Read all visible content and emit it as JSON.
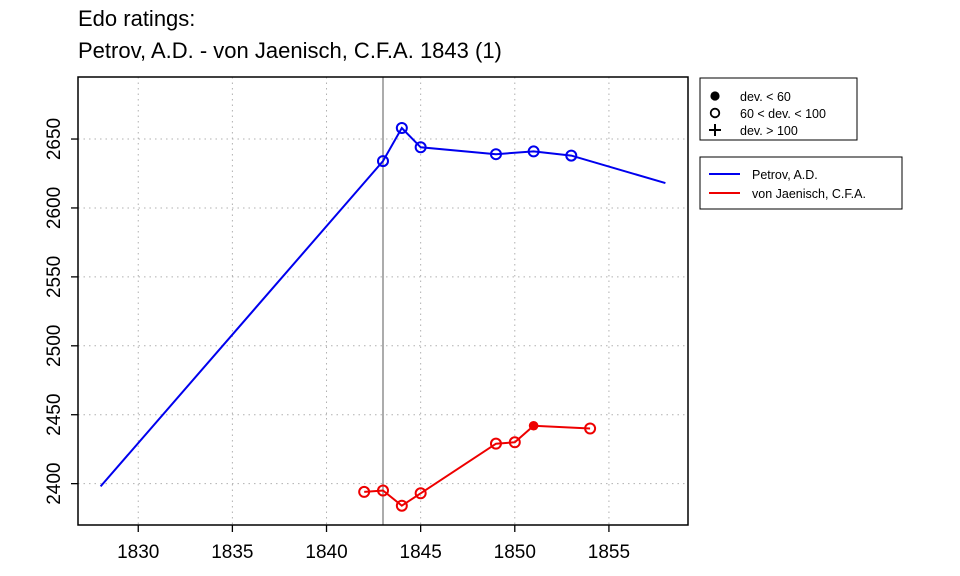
{
  "chart_data": {
    "type": "line",
    "title": "Edo ratings:",
    "subtitle": "Petrov, A.D. - von Jaenisch, C.F.A. 1843 (1)",
    "xlabel": "",
    "ylabel": "",
    "xlim": [
      1826.8,
      1859.2
    ],
    "ylim": [
      2370,
      2695
    ],
    "x_ticks": [
      1830,
      1835,
      1840,
      1845,
      1850,
      1855
    ],
    "y_ticks": [
      2400,
      2450,
      2500,
      2550,
      2600,
      2650
    ],
    "grid": true,
    "event_year": 1843,
    "series": [
      {
        "name": "Petrov, A.D.",
        "color": "#0000ee",
        "x": [
          1828,
          1843,
          1844,
          1845,
          1849,
          1851,
          1853,
          1858
        ],
        "y": [
          2398,
          2634,
          2658,
          2644,
          2639,
          2641,
          2638,
          2618
        ],
        "markers": [
          null,
          "open",
          "open",
          "open",
          "open",
          "open",
          "open",
          null
        ]
      },
      {
        "name": "von Jaenisch, C.F.A.",
        "color": "#ee0000",
        "x": [
          1842,
          1843,
          1844,
          1845,
          1849,
          1850,
          1851,
          1854
        ],
        "y": [
          2394,
          2395,
          2384,
          2393,
          2429,
          2430,
          2442,
          2440
        ],
        "markers": [
          "open",
          "open",
          "open",
          "open",
          "open",
          "open",
          "filled",
          "open"
        ]
      }
    ],
    "marker_legend": {
      "position": "top-right",
      "items": [
        {
          "symbol": "filled",
          "label": "dev. < 60"
        },
        {
          "symbol": "open",
          "label": "60 < dev. < 100"
        },
        {
          "symbol": "plus",
          "label": "dev. > 100"
        }
      ]
    },
    "series_legend": {
      "position": "right"
    }
  }
}
